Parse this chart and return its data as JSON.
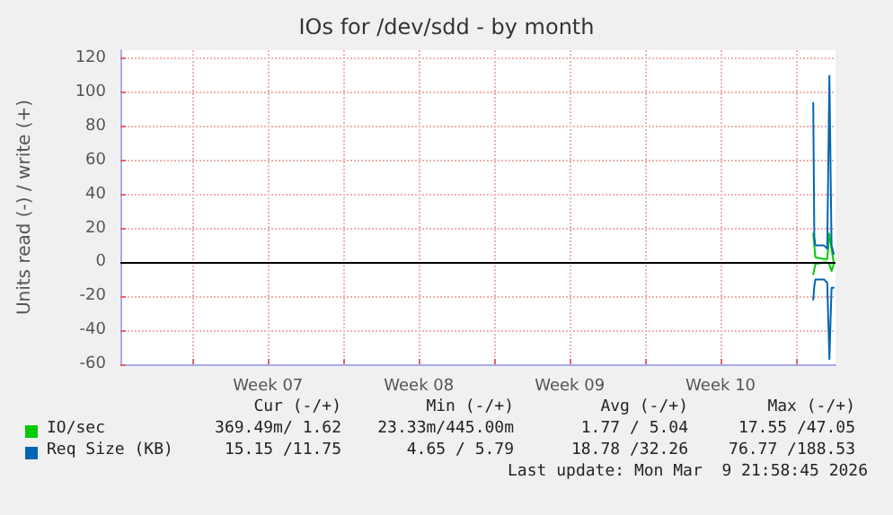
{
  "chart_data": {
    "type": "line",
    "title": "IOs for /dev/sdd - by month",
    "ylabel": "Units read (-) / write (+)",
    "xlim": [
      "2026-02-04T15:36",
      "2026-03-09T20:00"
    ],
    "xticks": [
      {
        "value": "2026-02-08",
        "label": null
      },
      {
        "value": "2026-02-11T12:00",
        "label": "Week 07"
      },
      {
        "value": "2026-02-15",
        "label": null
      },
      {
        "value": "2026-02-18T12:00",
        "label": "Week 08"
      },
      {
        "value": "2026-02-22",
        "label": null
      },
      {
        "value": "2026-02-25T12:00",
        "label": "Week 09"
      },
      {
        "value": "2026-03-01",
        "label": null
      },
      {
        "value": "2026-03-04T12:00",
        "label": "Week 10"
      },
      {
        "value": "2026-03-08",
        "label": null
      }
    ],
    "ylim": [
      -60,
      125
    ],
    "yticks": [
      -60,
      -40,
      -20,
      0,
      20,
      40,
      60,
      80,
      100,
      120
    ],
    "grid": true,
    "legend": "bottom",
    "marker": "none",
    "line_style": "solid",
    "ref_lines": [
      {
        "axis": "y",
        "value": 0,
        "label": null,
        "color": "#000000"
      }
    ],
    "series": [
      {
        "name": "IO/sec",
        "color": "#00cc00",
        "x": [
          "2026-03-08T19:12",
          "2026-03-08T21:36",
          "2026-03-09T07:12",
          "2026-03-09T10:48",
          "2026-03-09T13:12",
          "2026-03-09T15:36",
          "2026-03-09T18:00"
        ],
        "values": [
          17,
          3,
          2,
          2,
          17,
          8,
          0
        ]
      },
      {
        "color": "#00cc00",
        "x": [
          "2026-03-08T19:12",
          "2026-03-08T21:36",
          "2026-03-09T07:12",
          "2026-03-09T10:48",
          "2026-03-09T13:12",
          "2026-03-09T15:36",
          "2026-03-09T18:00"
        ],
        "values": [
          -7,
          -1,
          0,
          0,
          -1,
          -5,
          -1
        ]
      },
      {
        "name": "Req Size (KB)",
        "color": "#0066b3",
        "x": [
          "2026-03-08T19:12",
          "2026-03-08T20:24",
          "2026-03-08T21:36",
          "2026-03-09T07:12",
          "2026-03-09T10:48",
          "2026-03-09T13:12",
          "2026-03-09T15:36",
          "2026-03-09T18:00"
        ],
        "values": [
          94,
          15,
          10,
          10,
          8,
          110,
          10,
          5
        ]
      },
      {
        "color": "#0066b3",
        "x": [
          "2026-03-08T19:12",
          "2026-03-08T20:24",
          "2026-03-08T21:36",
          "2026-03-09T07:12",
          "2026-03-09T10:48",
          "2026-03-09T13:12",
          "2026-03-09T15:36",
          "2026-03-09T18:00"
        ],
        "values": [
          -22,
          -14,
          -10,
          -10,
          -12,
          -57,
          -15,
          -15
        ]
      }
    ],
    "annotations": [
      "Cur (-/+)",
      "Min (-/+)",
      "Avg (-/+)",
      "Max (-/+)",
      "369.49m/ 1.62",
      "23.33m/445.00m",
      "1.77 / 5.04",
      "17.55 /47.05",
      "15.15 /11.75",
      "4.65 / 5.79",
      "18.78 /32.26",
      "76.77 /188.53",
      "Last update: Mon Mar  9 21:58:45 2026"
    ]
  }
}
